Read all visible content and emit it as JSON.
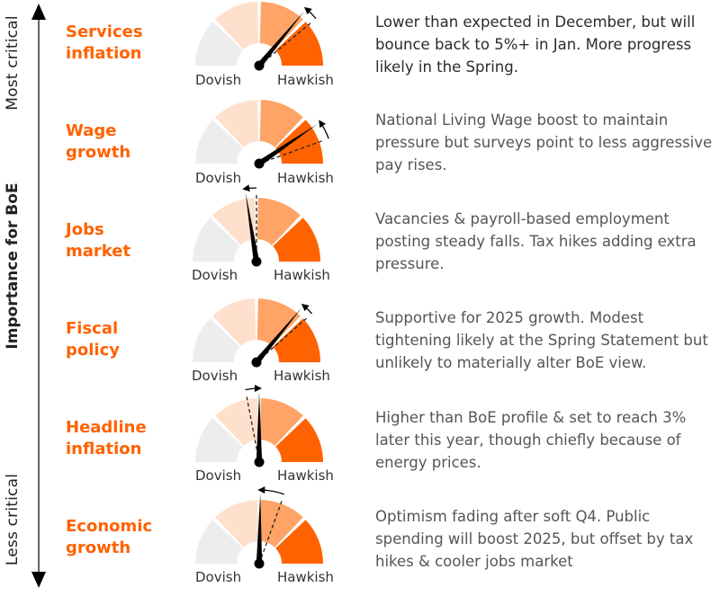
{
  "axis": {
    "title": "Importance for BoE",
    "top_label": "Most critical",
    "bottom_label": "Less critical"
  },
  "scale": {
    "left_label": "Dovish",
    "right_label": "Hawkish",
    "segment_colors": [
      "#ededed",
      "#ffe0cc",
      "#ffa366",
      "#ff6200"
    ]
  },
  "colors": {
    "accent": "#ff6200",
    "needle": "#000000",
    "text_dark": "#2b2b2b",
    "text_gray": "#555555"
  },
  "chart_data": {
    "type": "gauge",
    "title": "",
    "scale_note": "Needle position as fraction of dial from Dovish (0) to Hawkish (1)",
    "rows": [
      {
        "label_lines": [
          "Services",
          "inflation"
        ],
        "current": 0.72,
        "previous": 0.78,
        "description": "Lower than expected in December, but will bounce back to 5%+ in Jan. More progress likely in the Spring."
      },
      {
        "label_lines": [
          "Wage",
          "growth"
        ],
        "current": 0.81,
        "previous": 0.89,
        "description": "National Living Wage boost to maintain pressure but surveys point to less aggressive pay rises."
      },
      {
        "label_lines": [
          "Jobs",
          "market"
        ],
        "current": 0.45,
        "previous": 0.5,
        "description": "Vacancies & payroll-based employment posting steady falls. Tax hikes adding extra pressure."
      },
      {
        "label_lines": [
          "Fiscal",
          "policy"
        ],
        "current": 0.72,
        "previous": 0.77,
        "description": "Supportive for 2025 growth. Modest tightening likely at the Spring Statement but unlikely to materially alter BoE view."
      },
      {
        "label_lines": [
          "Headline",
          "inflation"
        ],
        "current": 0.5,
        "previous": 0.44,
        "description": "Higher than BoE profile & set to reach 3% later this year, though chiefly because of energy prices."
      },
      {
        "label_lines": [
          "Economic",
          "growth"
        ],
        "current": 0.505,
        "previous": 0.61,
        "description": "Optimism fading after soft Q4. Public spending will boost 2025, but offset by tax hikes & cooler jobs market"
      }
    ]
  }
}
